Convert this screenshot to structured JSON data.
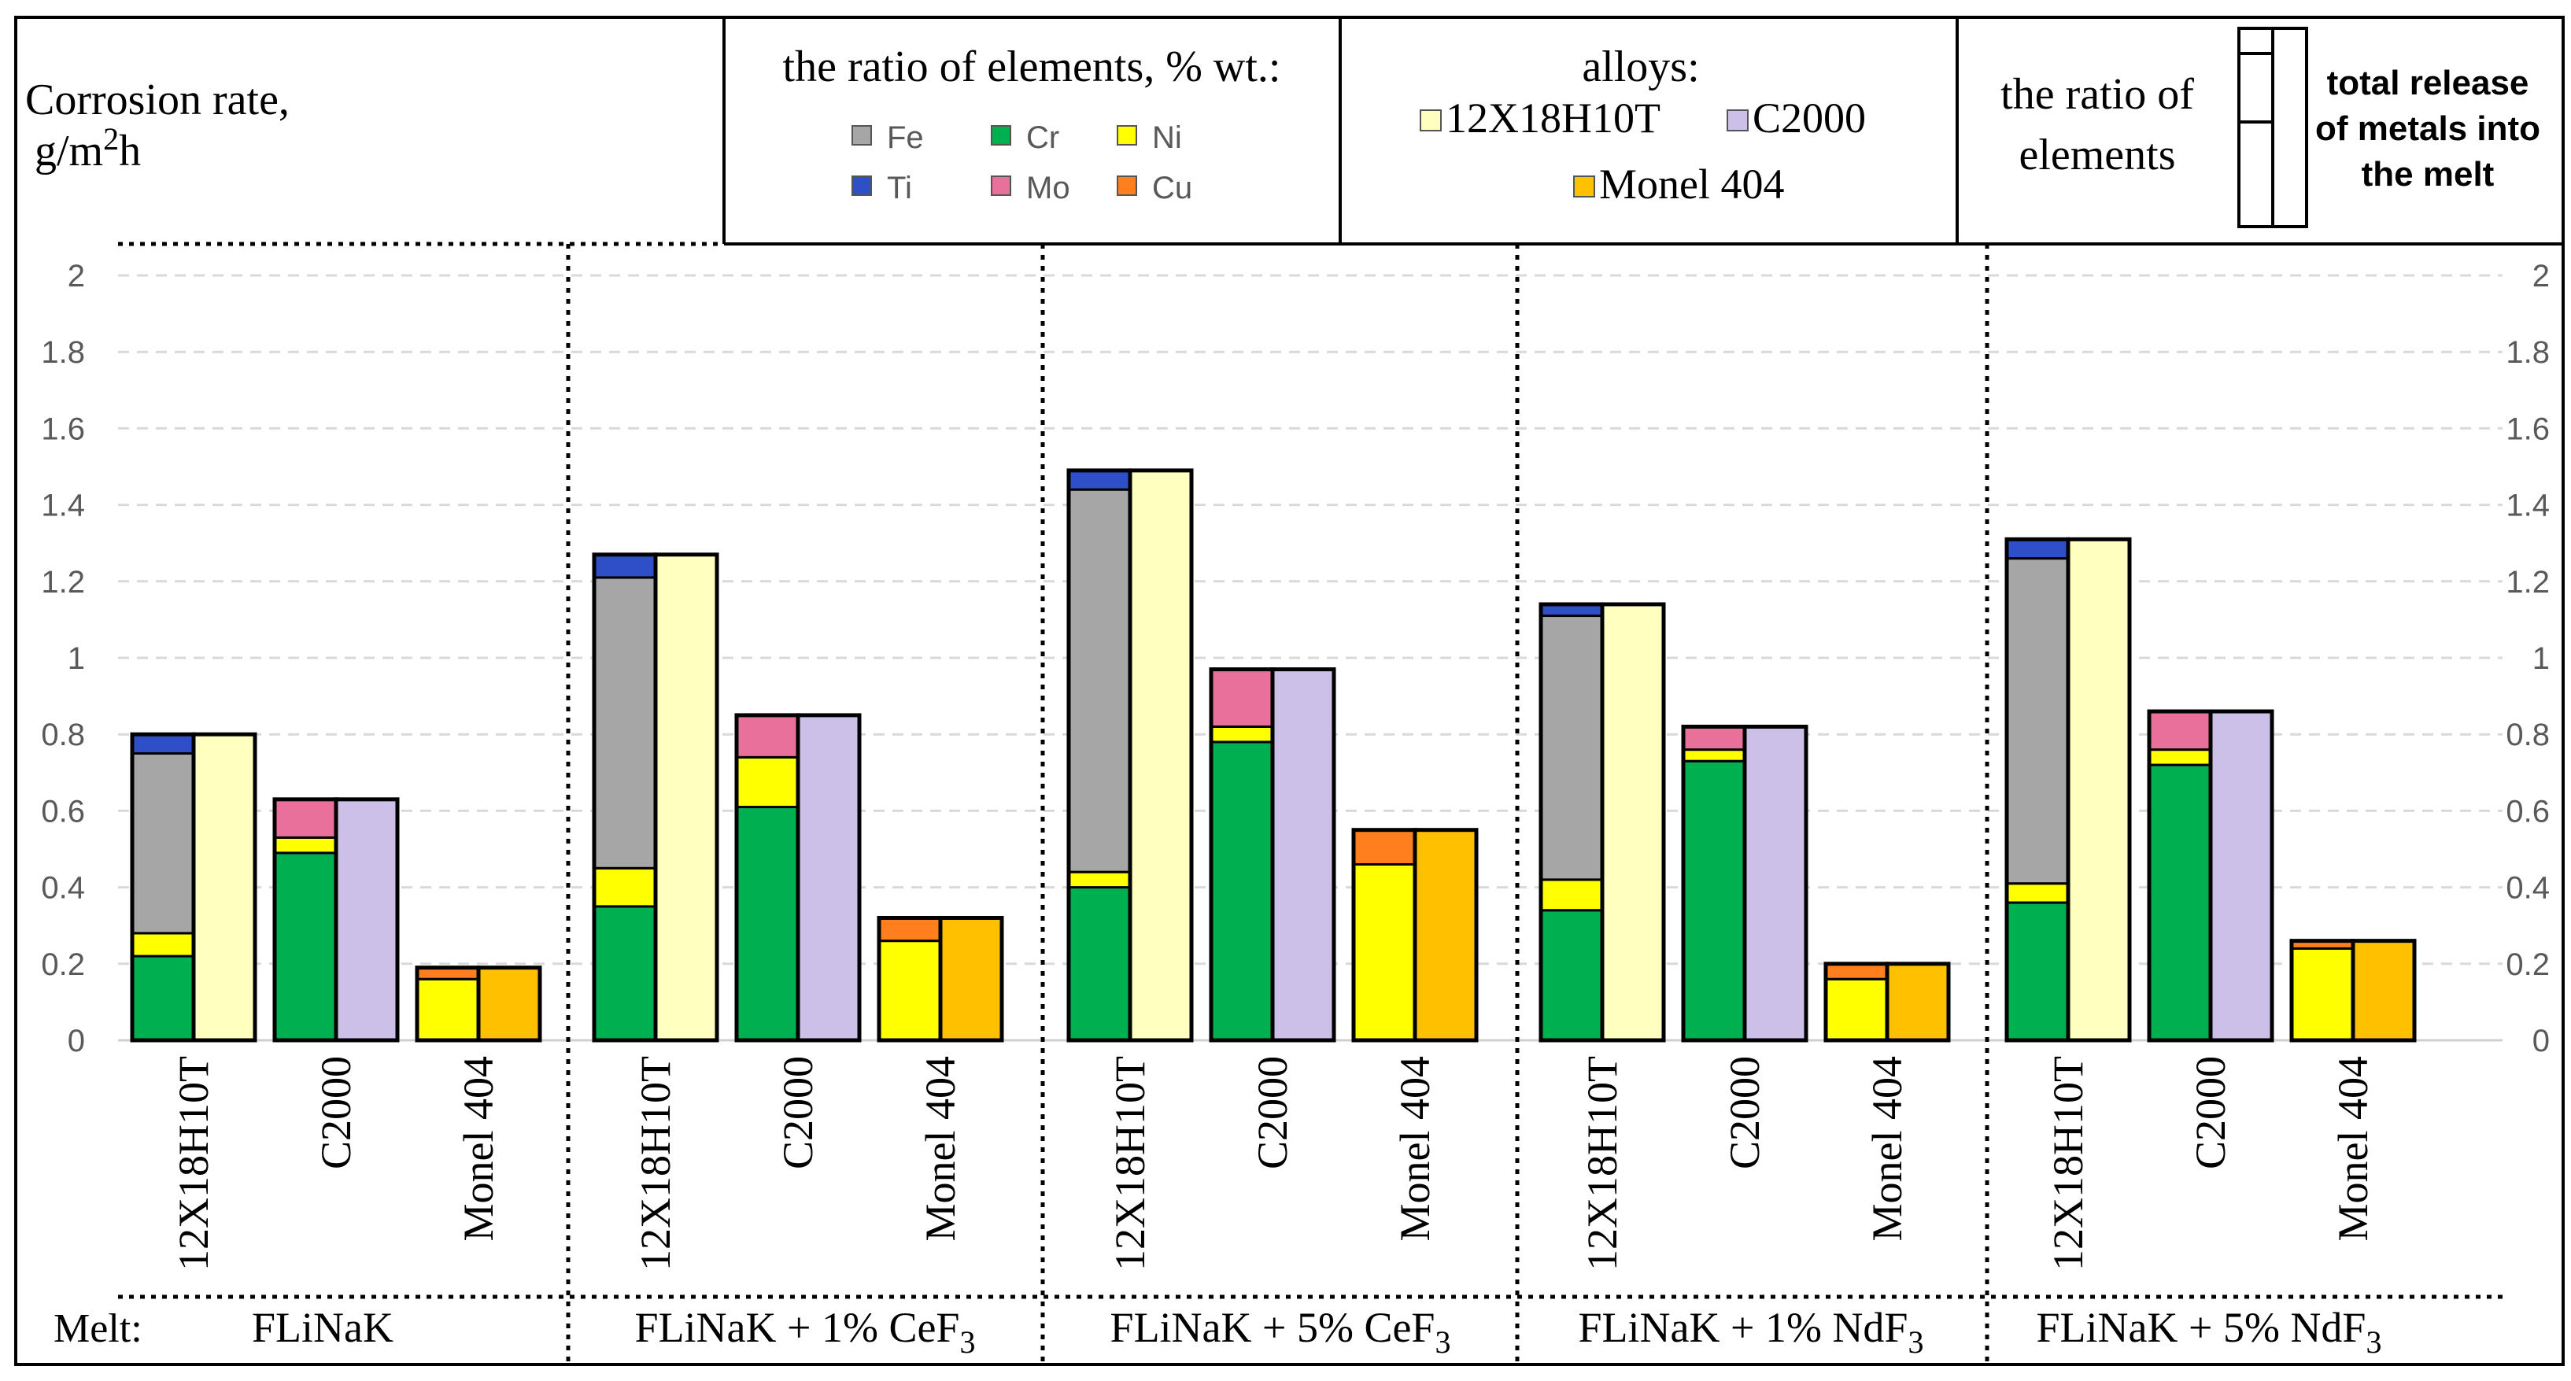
{
  "header": {
    "yaxis_title_line1": "Corrosion rate,",
    "yaxis_title_line2_prefix": "g/m",
    "yaxis_title_line2_sup": "2",
    "yaxis_title_line2_suffix": "h",
    "elements_title": "the ratio of elements, % wt.:",
    "alloys_title": "alloys:",
    "ratio_explain_line1": "the ratio of",
    "ratio_explain_line2": "elements",
    "total_explain_line1": "total release",
    "total_explain_line2": "of metals into",
    "total_explain_line3": "the melt"
  },
  "footer": {
    "melt_label": "Melt:",
    "groups": [
      {
        "main": "FLiNaK",
        "sub": ""
      },
      {
        "main": "FLiNaK + 1% CeF",
        "sub": "3"
      },
      {
        "main": "FLiNaK + 5% CeF",
        "sub": "3"
      },
      {
        "main": "FLiNaK + 1% NdF",
        "sub": "3"
      },
      {
        "main": "FLiNaK + 5% NdF",
        "sub": "3"
      }
    ]
  },
  "chart_data": {
    "type": "bar",
    "stacked": true,
    "ylim": [
      0,
      2
    ],
    "yticks": [
      "0",
      "0.2",
      "0.4",
      "0.6",
      "0.8",
      "1",
      "1.2",
      "1.4",
      "1.6",
      "1.8",
      "2"
    ],
    "grid": true,
    "categories": [
      "12X18H10T",
      "C2000",
      "Monel 404"
    ],
    "element_legend": [
      {
        "name": "Fe",
        "color": "#a6a6a6"
      },
      {
        "name": "Cr",
        "color": "#00b050"
      },
      {
        "name": "Ni",
        "color": "#ffff00"
      },
      {
        "name": "Ti",
        "color": "#2e4fc7"
      },
      {
        "name": "Mo",
        "color": "#e8709a"
      },
      {
        "name": "Cu",
        "color": "#ff7f1e"
      }
    ],
    "alloy_legend": [
      {
        "name": "12X18H10T",
        "color": "#ffffc0"
      },
      {
        "name": "C2000",
        "color": "#ccc0e8"
      },
      {
        "name": "Monel 404",
        "color": "#ffc000"
      }
    ],
    "stack_order": [
      "Cr",
      "Ni",
      "Fe",
      "Mo",
      "Cu",
      "Ti"
    ],
    "groups": [
      {
        "bars": [
          {
            "alloy": "12X18H10T",
            "total": 0.8,
            "elements": {
              "Cr": 0.22,
              "Ni": 0.06,
              "Fe": 0.47,
              "Ti": 0.05
            }
          },
          {
            "alloy": "C2000",
            "total": 0.63,
            "elements": {
              "Cr": 0.49,
              "Ni": 0.04,
              "Mo": 0.1
            }
          },
          {
            "alloy": "Monel 404",
            "total": 0.19,
            "elements": {
              "Ni": 0.16,
              "Cu": 0.03
            }
          }
        ]
      },
      {
        "bars": [
          {
            "alloy": "12X18H10T",
            "total": 1.27,
            "elements": {
              "Cr": 0.35,
              "Ni": 0.1,
              "Fe": 0.76,
              "Ti": 0.06
            }
          },
          {
            "alloy": "C2000",
            "total": 0.85,
            "elements": {
              "Cr": 0.61,
              "Ni": 0.13,
              "Mo": 0.11
            }
          },
          {
            "alloy": "Monel 404",
            "total": 0.32,
            "elements": {
              "Ni": 0.26,
              "Cu": 0.06
            }
          }
        ]
      },
      {
        "bars": [
          {
            "alloy": "12X18H10T",
            "total": 1.49,
            "elements": {
              "Cr": 0.4,
              "Ni": 0.04,
              "Fe": 1.0,
              "Ti": 0.05
            }
          },
          {
            "alloy": "C2000",
            "total": 0.97,
            "elements": {
              "Cr": 0.78,
              "Ni": 0.04,
              "Mo": 0.15
            }
          },
          {
            "alloy": "Monel 404",
            "total": 0.55,
            "elements": {
              "Ni": 0.46,
              "Cu": 0.09
            }
          }
        ]
      },
      {
        "bars": [
          {
            "alloy": "12X18H10T",
            "total": 1.14,
            "elements": {
              "Cr": 0.34,
              "Ni": 0.08,
              "Fe": 0.69,
              "Ti": 0.03
            }
          },
          {
            "alloy": "C2000",
            "total": 0.82,
            "elements": {
              "Cr": 0.73,
              "Ni": 0.03,
              "Mo": 0.06
            }
          },
          {
            "alloy": "Monel 404",
            "total": 0.2,
            "elements": {
              "Ni": 0.16,
              "Cu": 0.04
            }
          }
        ]
      },
      {
        "bars": [
          {
            "alloy": "12X18H10T",
            "total": 1.31,
            "elements": {
              "Cr": 0.36,
              "Ni": 0.05,
              "Fe": 0.85,
              "Ti": 0.05
            }
          },
          {
            "alloy": "C2000",
            "total": 0.86,
            "elements": {
              "Cr": 0.72,
              "Ni": 0.04,
              "Mo": 0.1
            }
          },
          {
            "alloy": "Monel 404",
            "total": 0.26,
            "elements": {
              "Ni": 0.24,
              "Cu": 0.02
            }
          }
        ]
      }
    ]
  }
}
